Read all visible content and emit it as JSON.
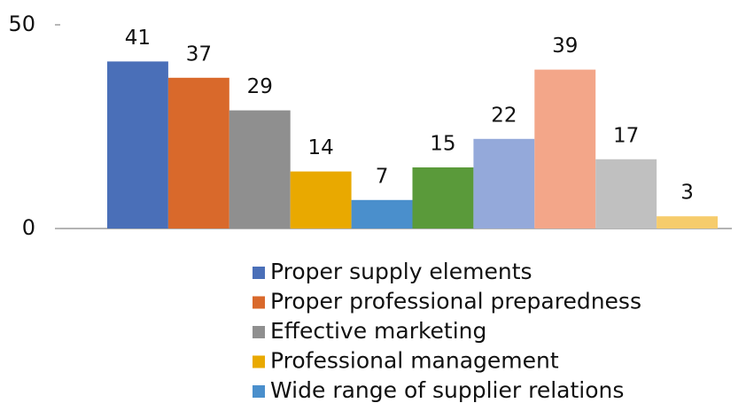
{
  "chart_data": {
    "type": "bar",
    "categories": [
      null
    ],
    "ylim": [
      0,
      50
    ],
    "yticks": [
      0,
      50
    ],
    "series": [
      {
        "name": "Proper supply elements",
        "color": "#4a6fb8",
        "values": [
          41
        ]
      },
      {
        "name": "Proper professional preparedness",
        "color": "#d9692b",
        "values": [
          37
        ]
      },
      {
        "name": "Effective marketing",
        "color": "#8f8f8f",
        "values": [
          29
        ]
      },
      {
        "name": "Professional management",
        "color": "#e9a900",
        "values": [
          14
        ]
      },
      {
        "name": "Wide range of supplier relations",
        "color": "#4a8fcc",
        "values": [
          7
        ]
      },
      {
        "color": "#5a9a3a",
        "values": [
          15
        ]
      },
      {
        "color": "#94a9da",
        "values": [
          22
        ]
      },
      {
        "color": "#f3a689",
        "values": [
          39
        ]
      },
      {
        "color": "#c0c0c0",
        "values": [
          17
        ]
      },
      {
        "color": "#f6cc6c",
        "values": [
          3
        ]
      }
    ]
  }
}
